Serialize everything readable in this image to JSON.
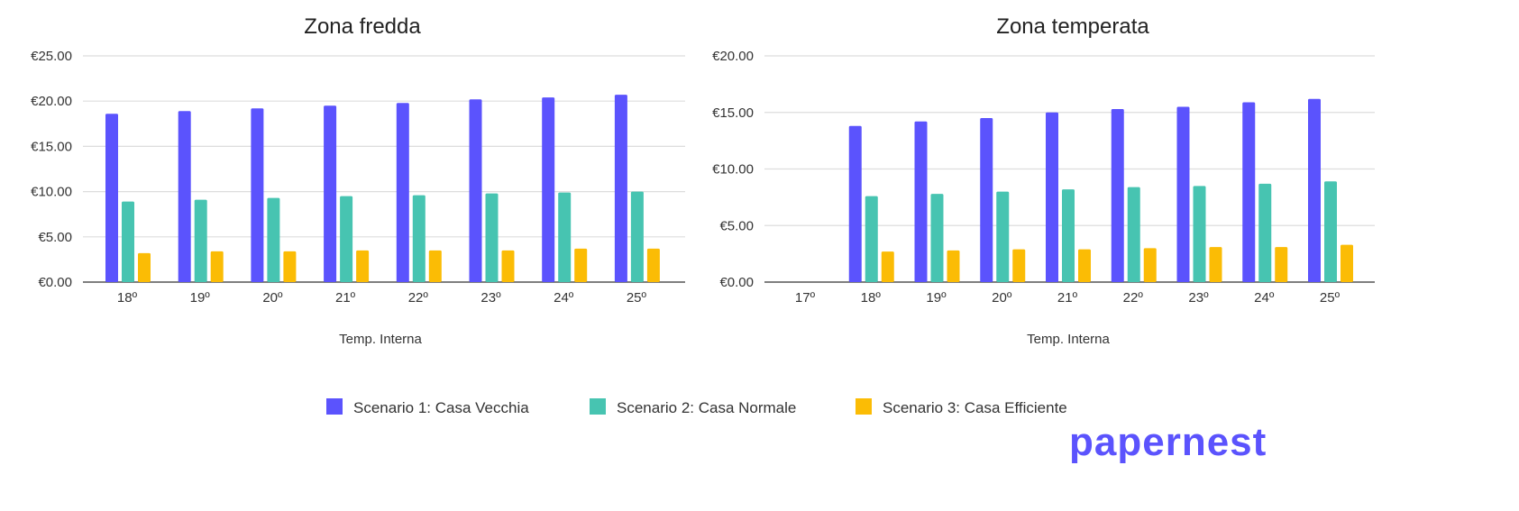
{
  "colors": {
    "s1": "#5b53fd",
    "s2": "#47c4b1",
    "s3": "#fbbc05",
    "logo": "#5b53fd"
  },
  "legend": [
    "Scenario 1: Casa Vecchia",
    "Scenario 2: Casa Normale",
    "Scenario 3: Casa Efficiente"
  ],
  "logo_text": "papernest",
  "chart_data": [
    {
      "type": "bar",
      "title": "Zona fredda",
      "xlabel": "Temp. Interna",
      "ylabel": "",
      "ylim": [
        0,
        25
      ],
      "yticks": [
        "€0.00",
        "€5.00",
        "€10.00",
        "€15.00",
        "€20.00",
        "€25.00"
      ],
      "grid": true,
      "legend_position": "bottom",
      "categories": [
        "18º",
        "19º",
        "20º",
        "21º",
        "22º",
        "23º",
        "24º",
        "25º"
      ],
      "series": [
        {
          "name": "Scenario 1: Casa Vecchia",
          "values": [
            18.6,
            18.9,
            19.2,
            19.5,
            19.8,
            20.2,
            20.4,
            20.7
          ]
        },
        {
          "name": "Scenario 2: Casa Normale",
          "values": [
            8.9,
            9.1,
            9.3,
            9.5,
            9.6,
            9.8,
            9.9,
            10.0
          ]
        },
        {
          "name": "Scenario 3: Casa Efficiente",
          "values": [
            3.2,
            3.4,
            3.4,
            3.5,
            3.5,
            3.5,
            3.7,
            3.7
          ]
        }
      ]
    },
    {
      "type": "bar",
      "title": "Zona temperata",
      "xlabel": "Temp. Interna",
      "ylabel": "",
      "ylim": [
        0,
        20
      ],
      "yticks": [
        "€0.00",
        "€5.00",
        "€10.00",
        "€15.00",
        "€20.00"
      ],
      "grid": true,
      "legend_position": "bottom",
      "categories": [
        "17º",
        "18º",
        "19º",
        "20º",
        "21º",
        "22º",
        "23º",
        "24º",
        "25º"
      ],
      "series": [
        {
          "name": "Scenario 1: Casa Vecchia",
          "values": [
            null,
            13.8,
            14.2,
            14.5,
            15.0,
            15.3,
            15.5,
            15.9,
            16.2
          ]
        },
        {
          "name": "Scenario 2: Casa Normale",
          "values": [
            null,
            7.6,
            7.8,
            8.0,
            8.2,
            8.4,
            8.5,
            8.7,
            8.9
          ]
        },
        {
          "name": "Scenario 3: Casa Efficiente",
          "values": [
            null,
            2.7,
            2.8,
            2.9,
            2.9,
            3.0,
            3.1,
            3.1,
            3.3
          ]
        }
      ]
    }
  ]
}
